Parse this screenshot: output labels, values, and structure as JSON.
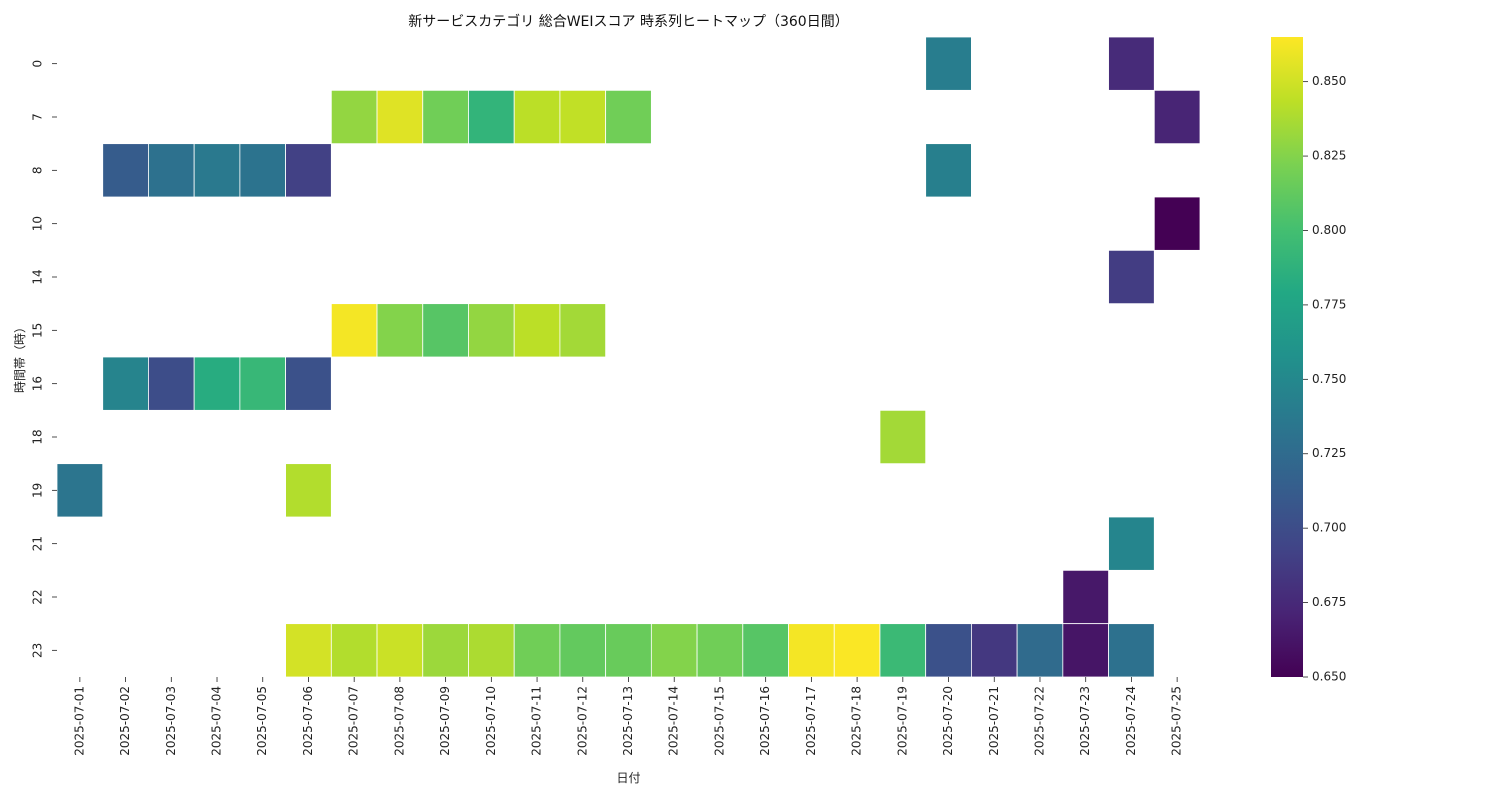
{
  "chart_data": {
    "type": "heatmap",
    "title": "新サービスカテゴリ 総合WEIスコア 時系列ヒートマップ（360日間）",
    "xlabel": "日付",
    "ylabel": "時間帯（時）",
    "x_categories": [
      "2025-07-01",
      "2025-07-02",
      "2025-07-03",
      "2025-07-04",
      "2025-07-05",
      "2025-07-06",
      "2025-07-07",
      "2025-07-08",
      "2025-07-09",
      "2025-07-10",
      "2025-07-11",
      "2025-07-12",
      "2025-07-13",
      "2025-07-14",
      "2025-07-15",
      "2025-07-16",
      "2025-07-17",
      "2025-07-18",
      "2025-07-19",
      "2025-07-20",
      "2025-07-21",
      "2025-07-22",
      "2025-07-23",
      "2025-07-24",
      "2025-07-25"
    ],
    "y_categories": [
      "0",
      "7",
      "8",
      "10",
      "14",
      "15",
      "16",
      "18",
      "19",
      "21",
      "22",
      "23"
    ],
    "colormap": "viridis",
    "colorbar": {
      "min": 0.65,
      "max": 0.865,
      "ticks": [
        0.65,
        0.675,
        0.7,
        0.725,
        0.75,
        0.775,
        0.8,
        0.825,
        0.85
      ],
      "tick_labels": [
        "0.650",
        "0.675",
        "0.700",
        "0.725",
        "0.750",
        "0.775",
        "0.800",
        "0.825",
        "0.850"
      ]
    },
    "cells": [
      {
        "x": "2025-07-20",
        "y": "0",
        "value": 0.74
      },
      {
        "x": "2025-07-24",
        "y": "0",
        "value": 0.676
      },
      {
        "x": "2025-07-07",
        "y": "7",
        "value": 0.83
      },
      {
        "x": "2025-07-08",
        "y": "7",
        "value": 0.855
      },
      {
        "x": "2025-07-09",
        "y": "7",
        "value": 0.818
      },
      {
        "x": "2025-07-10",
        "y": "7",
        "value": 0.79
      },
      {
        "x": "2025-07-11",
        "y": "7",
        "value": 0.843
      },
      {
        "x": "2025-07-12",
        "y": "7",
        "value": 0.845
      },
      {
        "x": "2025-07-13",
        "y": "7",
        "value": 0.818
      },
      {
        "x": "2025-07-25",
        "y": "7",
        "value": 0.672
      },
      {
        "x": "2025-07-02",
        "y": "8",
        "value": 0.712
      },
      {
        "x": "2025-07-03",
        "y": "8",
        "value": 0.73
      },
      {
        "x": "2025-07-04",
        "y": "8",
        "value": 0.737
      },
      {
        "x": "2025-07-05",
        "y": "8",
        "value": 0.732
      },
      {
        "x": "2025-07-06",
        "y": "8",
        "value": 0.691
      },
      {
        "x": "2025-07-20",
        "y": "8",
        "value": 0.742
      },
      {
        "x": "2025-07-25",
        "y": "10",
        "value": 0.65
      },
      {
        "x": "2025-07-24",
        "y": "14",
        "value": 0.688
      },
      {
        "x": "2025-07-07",
        "y": "15",
        "value": 0.862
      },
      {
        "x": "2025-07-08",
        "y": "15",
        "value": 0.825
      },
      {
        "x": "2025-07-09",
        "y": "15",
        "value": 0.808
      },
      {
        "x": "2025-07-10",
        "y": "15",
        "value": 0.83
      },
      {
        "x": "2025-07-11",
        "y": "15",
        "value": 0.843
      },
      {
        "x": "2025-07-12",
        "y": "15",
        "value": 0.835
      },
      {
        "x": "2025-07-02",
        "y": "16",
        "value": 0.746
      },
      {
        "x": "2025-07-03",
        "y": "16",
        "value": 0.7
      },
      {
        "x": "2025-07-04",
        "y": "16",
        "value": 0.783
      },
      {
        "x": "2025-07-05",
        "y": "16",
        "value": 0.793
      },
      {
        "x": "2025-07-06",
        "y": "16",
        "value": 0.703
      },
      {
        "x": "2025-07-19",
        "y": "18",
        "value": 0.835
      },
      {
        "x": "2025-07-01",
        "y": "19",
        "value": 0.733
      },
      {
        "x": "2025-07-06",
        "y": "19",
        "value": 0.84
      },
      {
        "x": "2025-07-24",
        "y": "21",
        "value": 0.747
      },
      {
        "x": "2025-07-23",
        "y": "22",
        "value": 0.664
      },
      {
        "x": "2025-07-06",
        "y": "23",
        "value": 0.851
      },
      {
        "x": "2025-07-07",
        "y": "23",
        "value": 0.84
      },
      {
        "x": "2025-07-08",
        "y": "23",
        "value": 0.848
      },
      {
        "x": "2025-07-09",
        "y": "23",
        "value": 0.833
      },
      {
        "x": "2025-07-10",
        "y": "23",
        "value": 0.838
      },
      {
        "x": "2025-07-11",
        "y": "23",
        "value": 0.818
      },
      {
        "x": "2025-07-12",
        "y": "23",
        "value": 0.813
      },
      {
        "x": "2025-07-13",
        "y": "23",
        "value": 0.815
      },
      {
        "x": "2025-07-14",
        "y": "23",
        "value": 0.825
      },
      {
        "x": "2025-07-15",
        "y": "23",
        "value": 0.818
      },
      {
        "x": "2025-07-16",
        "y": "23",
        "value": 0.808
      },
      {
        "x": "2025-07-17",
        "y": "23",
        "value": 0.862
      },
      {
        "x": "2025-07-18",
        "y": "23",
        "value": 0.864
      },
      {
        "x": "2025-07-19",
        "y": "23",
        "value": 0.795
      },
      {
        "x": "2025-07-20",
        "y": "23",
        "value": 0.703
      },
      {
        "x": "2025-07-21",
        "y": "23",
        "value": 0.685
      },
      {
        "x": "2025-07-22",
        "y": "23",
        "value": 0.725
      },
      {
        "x": "2025-07-23",
        "y": "23",
        "value": 0.662
      },
      {
        "x": "2025-07-24",
        "y": "23",
        "value": 0.73
      }
    ]
  }
}
